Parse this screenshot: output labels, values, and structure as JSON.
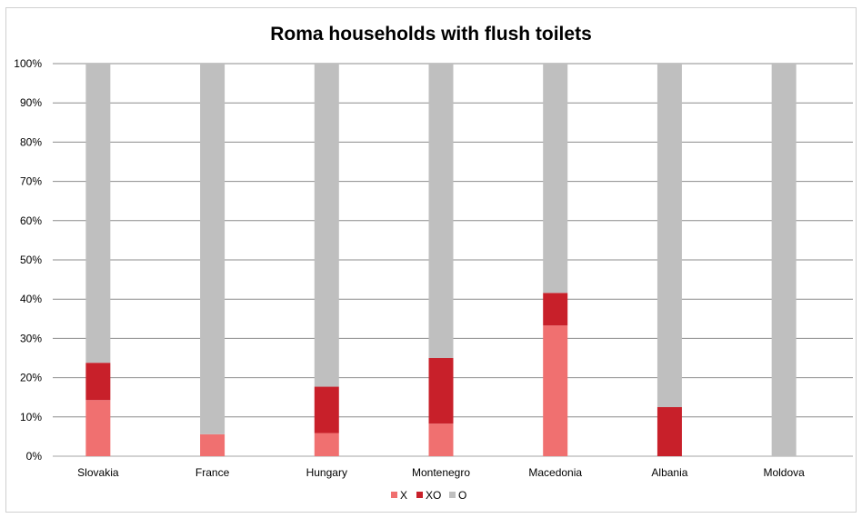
{
  "chart_data": {
    "type": "bar",
    "stacked": true,
    "normalized_percent": true,
    "title": "Roma households with flush toilets",
    "categories": [
      "Slovakia",
      "France",
      "Hungary",
      "Montenegro",
      "Macedonia",
      "Albania",
      "Moldova"
    ],
    "series": [
      {
        "name": "X",
        "color": "#f07070",
        "values": [
          14.3,
          5.6,
          5.9,
          8.3,
          33.3,
          0,
          0
        ]
      },
      {
        "name": "XO",
        "color": "#c8202a",
        "values": [
          9.5,
          0,
          11.8,
          16.7,
          8.3,
          12.5,
          0
        ]
      },
      {
        "name": "O",
        "color": "#bfbfbf",
        "values": [
          76.2,
          94.4,
          82.3,
          75.0,
          58.4,
          87.5,
          100
        ]
      }
    ],
    "y_ticks": [
      "0%",
      "10%",
      "20%",
      "30%",
      "40%",
      "50%",
      "60%",
      "70%",
      "80%",
      "90%",
      "100%"
    ],
    "ylim": [
      0,
      100
    ],
    "grid": true,
    "legend_position": "bottom-center"
  }
}
